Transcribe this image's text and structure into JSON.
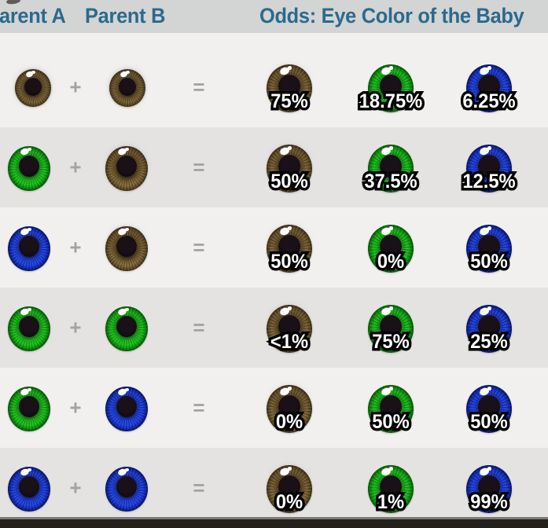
{
  "header": {
    "parent_a_label": "arent A",
    "parent_b_label": "Parent B",
    "odds_label": "Odds: Eye Color of the Baby"
  },
  "colors": {
    "header_bg": "#d3d4d4",
    "header_text": "#2b6a8c",
    "row_light": "#f1f0ee",
    "row_dark": "#e4e3e1",
    "operator": "#a3a3a1",
    "pct_fill": "#ffffff",
    "pct_outline": "#000000",
    "bottom_bar": "#24211d",
    "eye_brown": "#8a7240",
    "eye_green": "#18b318",
    "eye_blue": "#1c3ad8"
  },
  "chart_data": {
    "type": "table",
    "title": "Odds: Eye Color of the Baby",
    "columns": [
      "Parent A",
      "Parent B",
      "Brown odds",
      "Green odds",
      "Blue odds"
    ],
    "operators": {
      "plus": "+",
      "equals": "="
    },
    "baby_columns": [
      "brown",
      "green",
      "blue"
    ],
    "rows": [
      {
        "parent_a": "brown",
        "parent_b": "brown",
        "odds": {
          "brown": "75%",
          "green": "18.75%",
          "blue": "6.25%"
        }
      },
      {
        "parent_a": "green",
        "parent_b": "brown",
        "odds": {
          "brown": "50%",
          "green": "37.5%",
          "blue": "12.5%"
        }
      },
      {
        "parent_a": "blue",
        "parent_b": "brown",
        "odds": {
          "brown": "50%",
          "green": "0%",
          "blue": "50%"
        }
      },
      {
        "parent_a": "green",
        "parent_b": "green",
        "odds": {
          "brown": "<1%",
          "green": "75%",
          "blue": "25%"
        }
      },
      {
        "parent_a": "green",
        "parent_b": "blue",
        "odds": {
          "brown": "0%",
          "green": "50%",
          "blue": "50%"
        }
      },
      {
        "parent_a": "blue",
        "parent_b": "blue",
        "odds": {
          "brown": "0%",
          "green": "1%",
          "blue": "99%"
        }
      }
    ]
  }
}
